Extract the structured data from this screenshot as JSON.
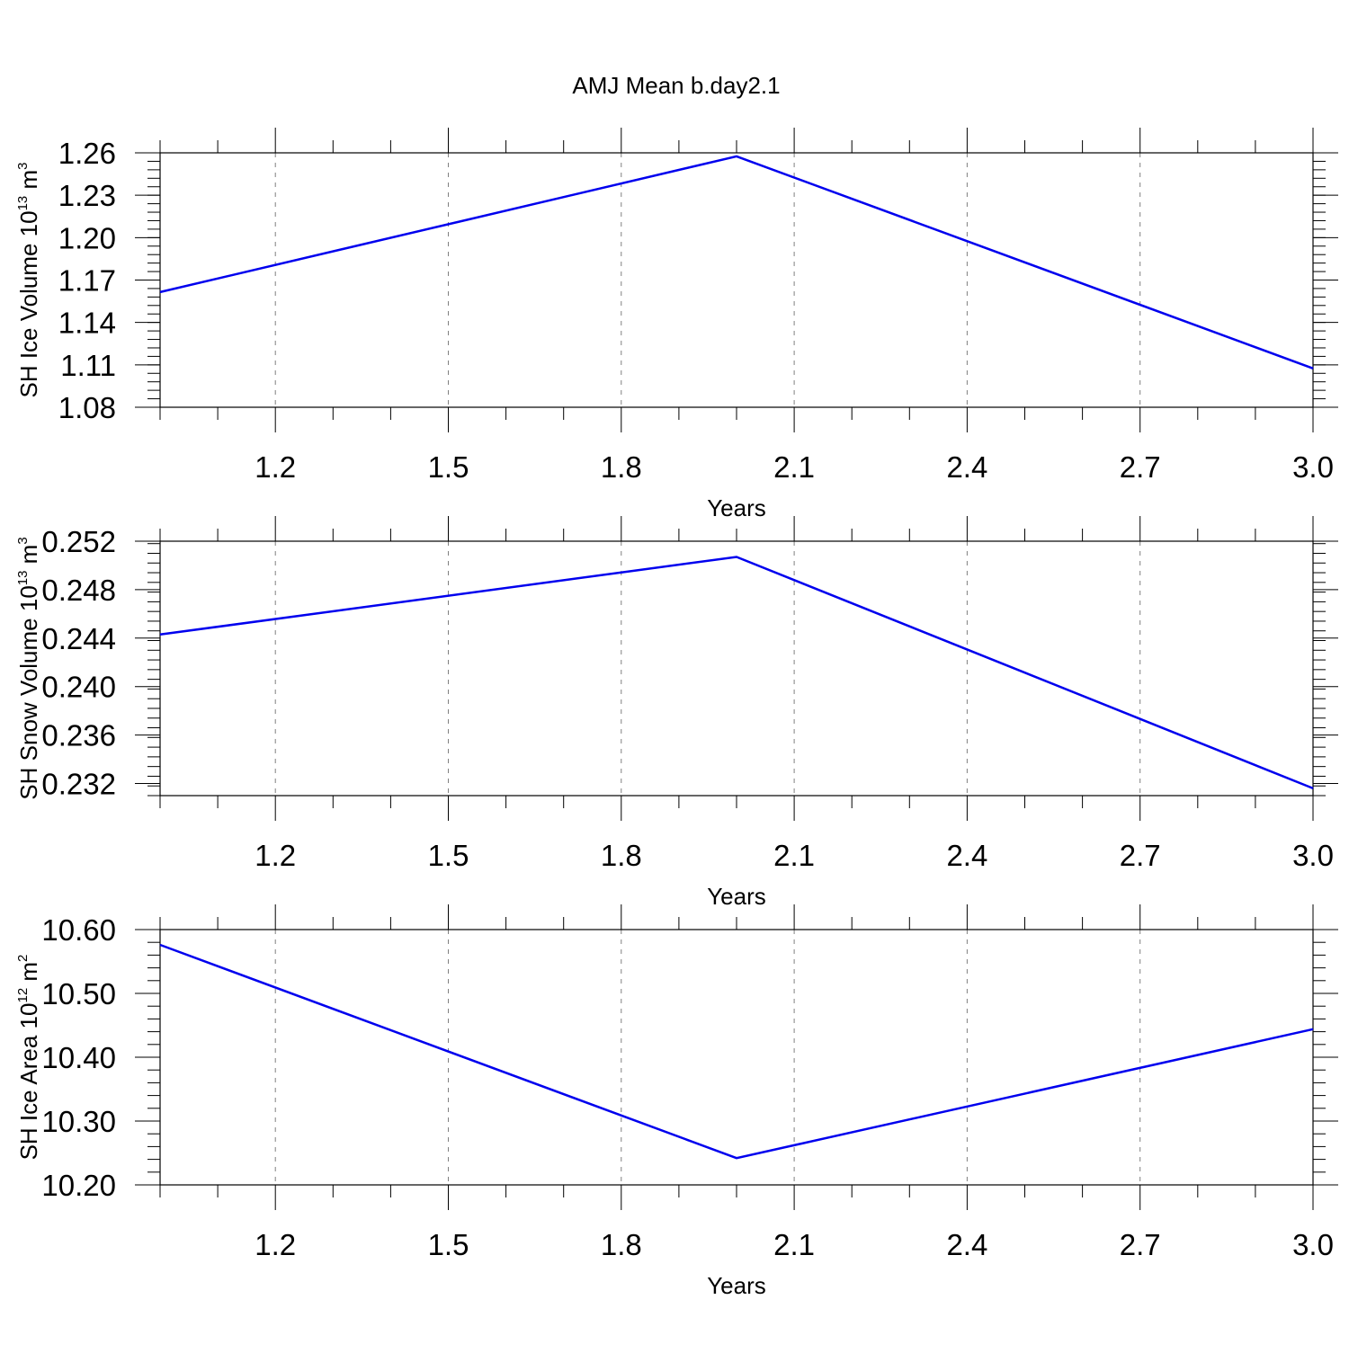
{
  "colors": {
    "line": "#0000ee",
    "frame": "#000000",
    "grid": "#808080",
    "background": "#ffffff"
  },
  "chart_data": [
    {
      "type": "line",
      "title": "AMJ Mean b.day2.1",
      "xlabel": "Years",
      "ylabel": {
        "text": "SH Ice Volume 10",
        "exponent": "13",
        "unit_text": " m",
        "unit_exponent": "3"
      },
      "xlim": [
        1,
        3
      ],
      "ylim": [
        1.08,
        1.26
      ],
      "xticks": [
        "1.2",
        "1.5",
        "1.8",
        "2.1",
        "2.4",
        "2.7",
        "3.0"
      ],
      "yticks": [
        "1.08",
        "1.11",
        "1.14",
        "1.17",
        "1.20",
        "1.23",
        "1.26"
      ],
      "grid": "vertical dashed",
      "series": [
        {
          "x": [
            1,
            2,
            3
          ],
          "y": [
            1.1615,
            1.2575,
            1.1075
          ]
        }
      ]
    },
    {
      "type": "line",
      "title": "",
      "xlabel": "Years",
      "ylabel": {
        "text": "SH Snow Volume 10",
        "exponent": "13",
        "unit_text": " m",
        "unit_exponent": "3"
      },
      "xlim": [
        1,
        3
      ],
      "ylim": [
        0.231,
        0.252
      ],
      "xticks": [
        "1.2",
        "1.5",
        "1.8",
        "2.1",
        "2.4",
        "2.7",
        "3.0"
      ],
      "yticks": [
        "0.232",
        "0.236",
        "0.240",
        "0.244",
        "0.248",
        "0.252"
      ],
      "grid": "vertical dashed",
      "series": [
        {
          "x": [
            1,
            2,
            3
          ],
          "y": [
            0.2443,
            0.2507,
            0.2316
          ]
        }
      ]
    },
    {
      "type": "line",
      "title": "",
      "xlabel": "Years",
      "ylabel": {
        "text": "SH Ice Area 10",
        "exponent": "12",
        "unit_text": " m",
        "unit_exponent": "2"
      },
      "xlim": [
        1,
        3
      ],
      "ylim": [
        10.2,
        10.6
      ],
      "xticks": [
        "1.2",
        "1.5",
        "1.8",
        "2.1",
        "2.4",
        "2.7",
        "3.0"
      ],
      "yticks": [
        "10.20",
        "10.30",
        "10.40",
        "10.50",
        "10.60"
      ],
      "grid": "vertical dashed",
      "series": [
        {
          "x": [
            1,
            2,
            3
          ],
          "y": [
            10.576,
            10.242,
            10.444
          ]
        }
      ]
    }
  ]
}
